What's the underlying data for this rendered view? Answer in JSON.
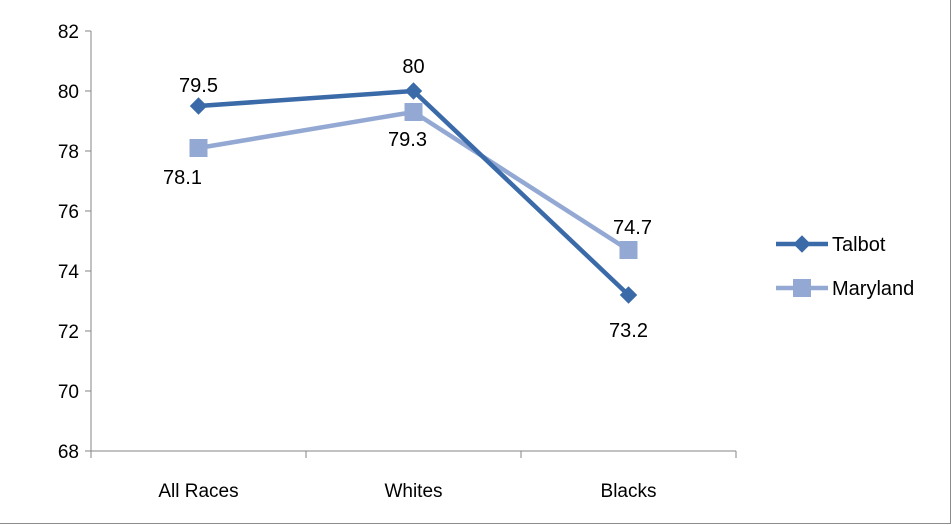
{
  "chart_data": {
    "type": "line",
    "categories": [
      "All Races",
      "Whites",
      "Blacks"
    ],
    "ylim": [
      68,
      82
    ],
    "yticks": [
      68,
      70,
      72,
      74,
      76,
      78,
      80,
      82
    ],
    "grid": false,
    "legend_position": "right",
    "series": [
      {
        "name": "Talbot",
        "values": [
          79.5,
          80,
          73.2
        ],
        "labels": [
          "79.5",
          "80",
          "73.2"
        ],
        "color": "#3B6AA8",
        "marker": "diamond"
      },
      {
        "name": "Maryland",
        "values": [
          78.1,
          79.3,
          74.7
        ],
        "labels": [
          "78.1",
          "79.3",
          "74.7"
        ],
        "color": "#93A9D3",
        "marker": "square"
      }
    ]
  }
}
